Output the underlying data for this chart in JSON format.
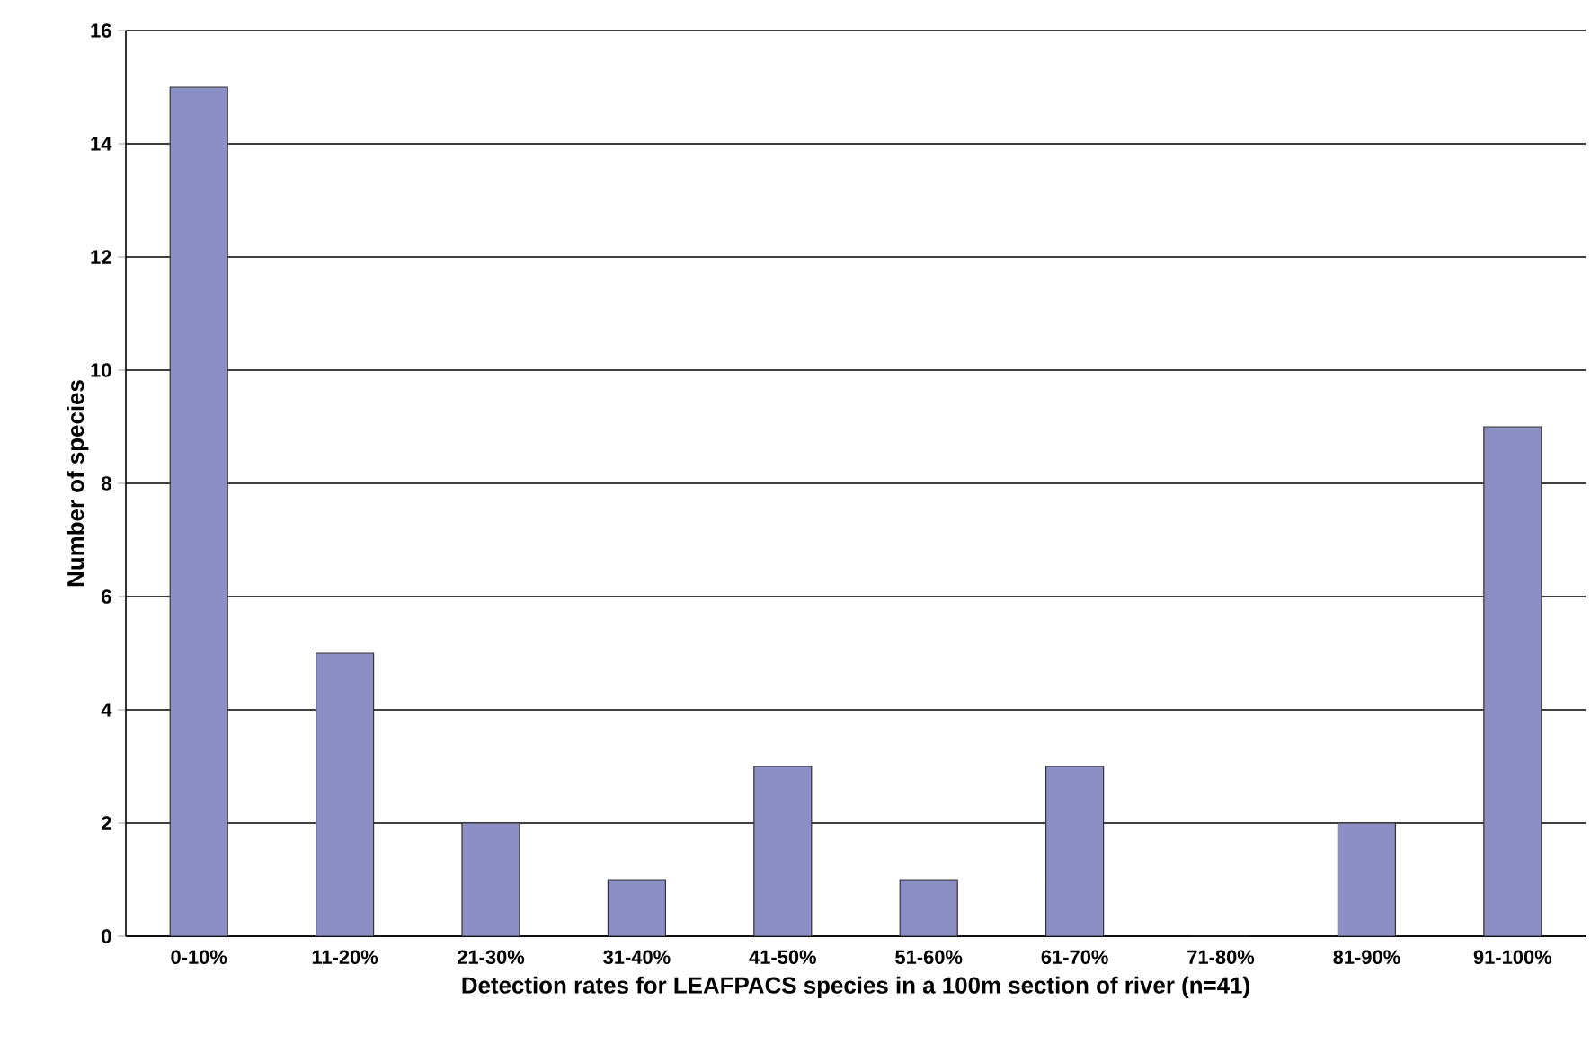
{
  "chart_data": {
    "type": "bar",
    "xlabel": "Detection rates for LEAFPACS species in a 100m section of river (n=41)",
    "ylabel": "Number of species",
    "categories": [
      "0-10%",
      "11-20%",
      "21-30%",
      "31-40%",
      "41-50%",
      "51-60%",
      "61-70%",
      "71-80%",
      "81-90%",
      "91-100%"
    ],
    "values": [
      15,
      5,
      2,
      1,
      3,
      1,
      3,
      0,
      2,
      9
    ],
    "color": "#8b8fc6",
    "ylim": [
      0,
      16
    ],
    "yticks": [
      0,
      2,
      4,
      6,
      8,
      10,
      12,
      14,
      16
    ],
    "grid": "y"
  }
}
